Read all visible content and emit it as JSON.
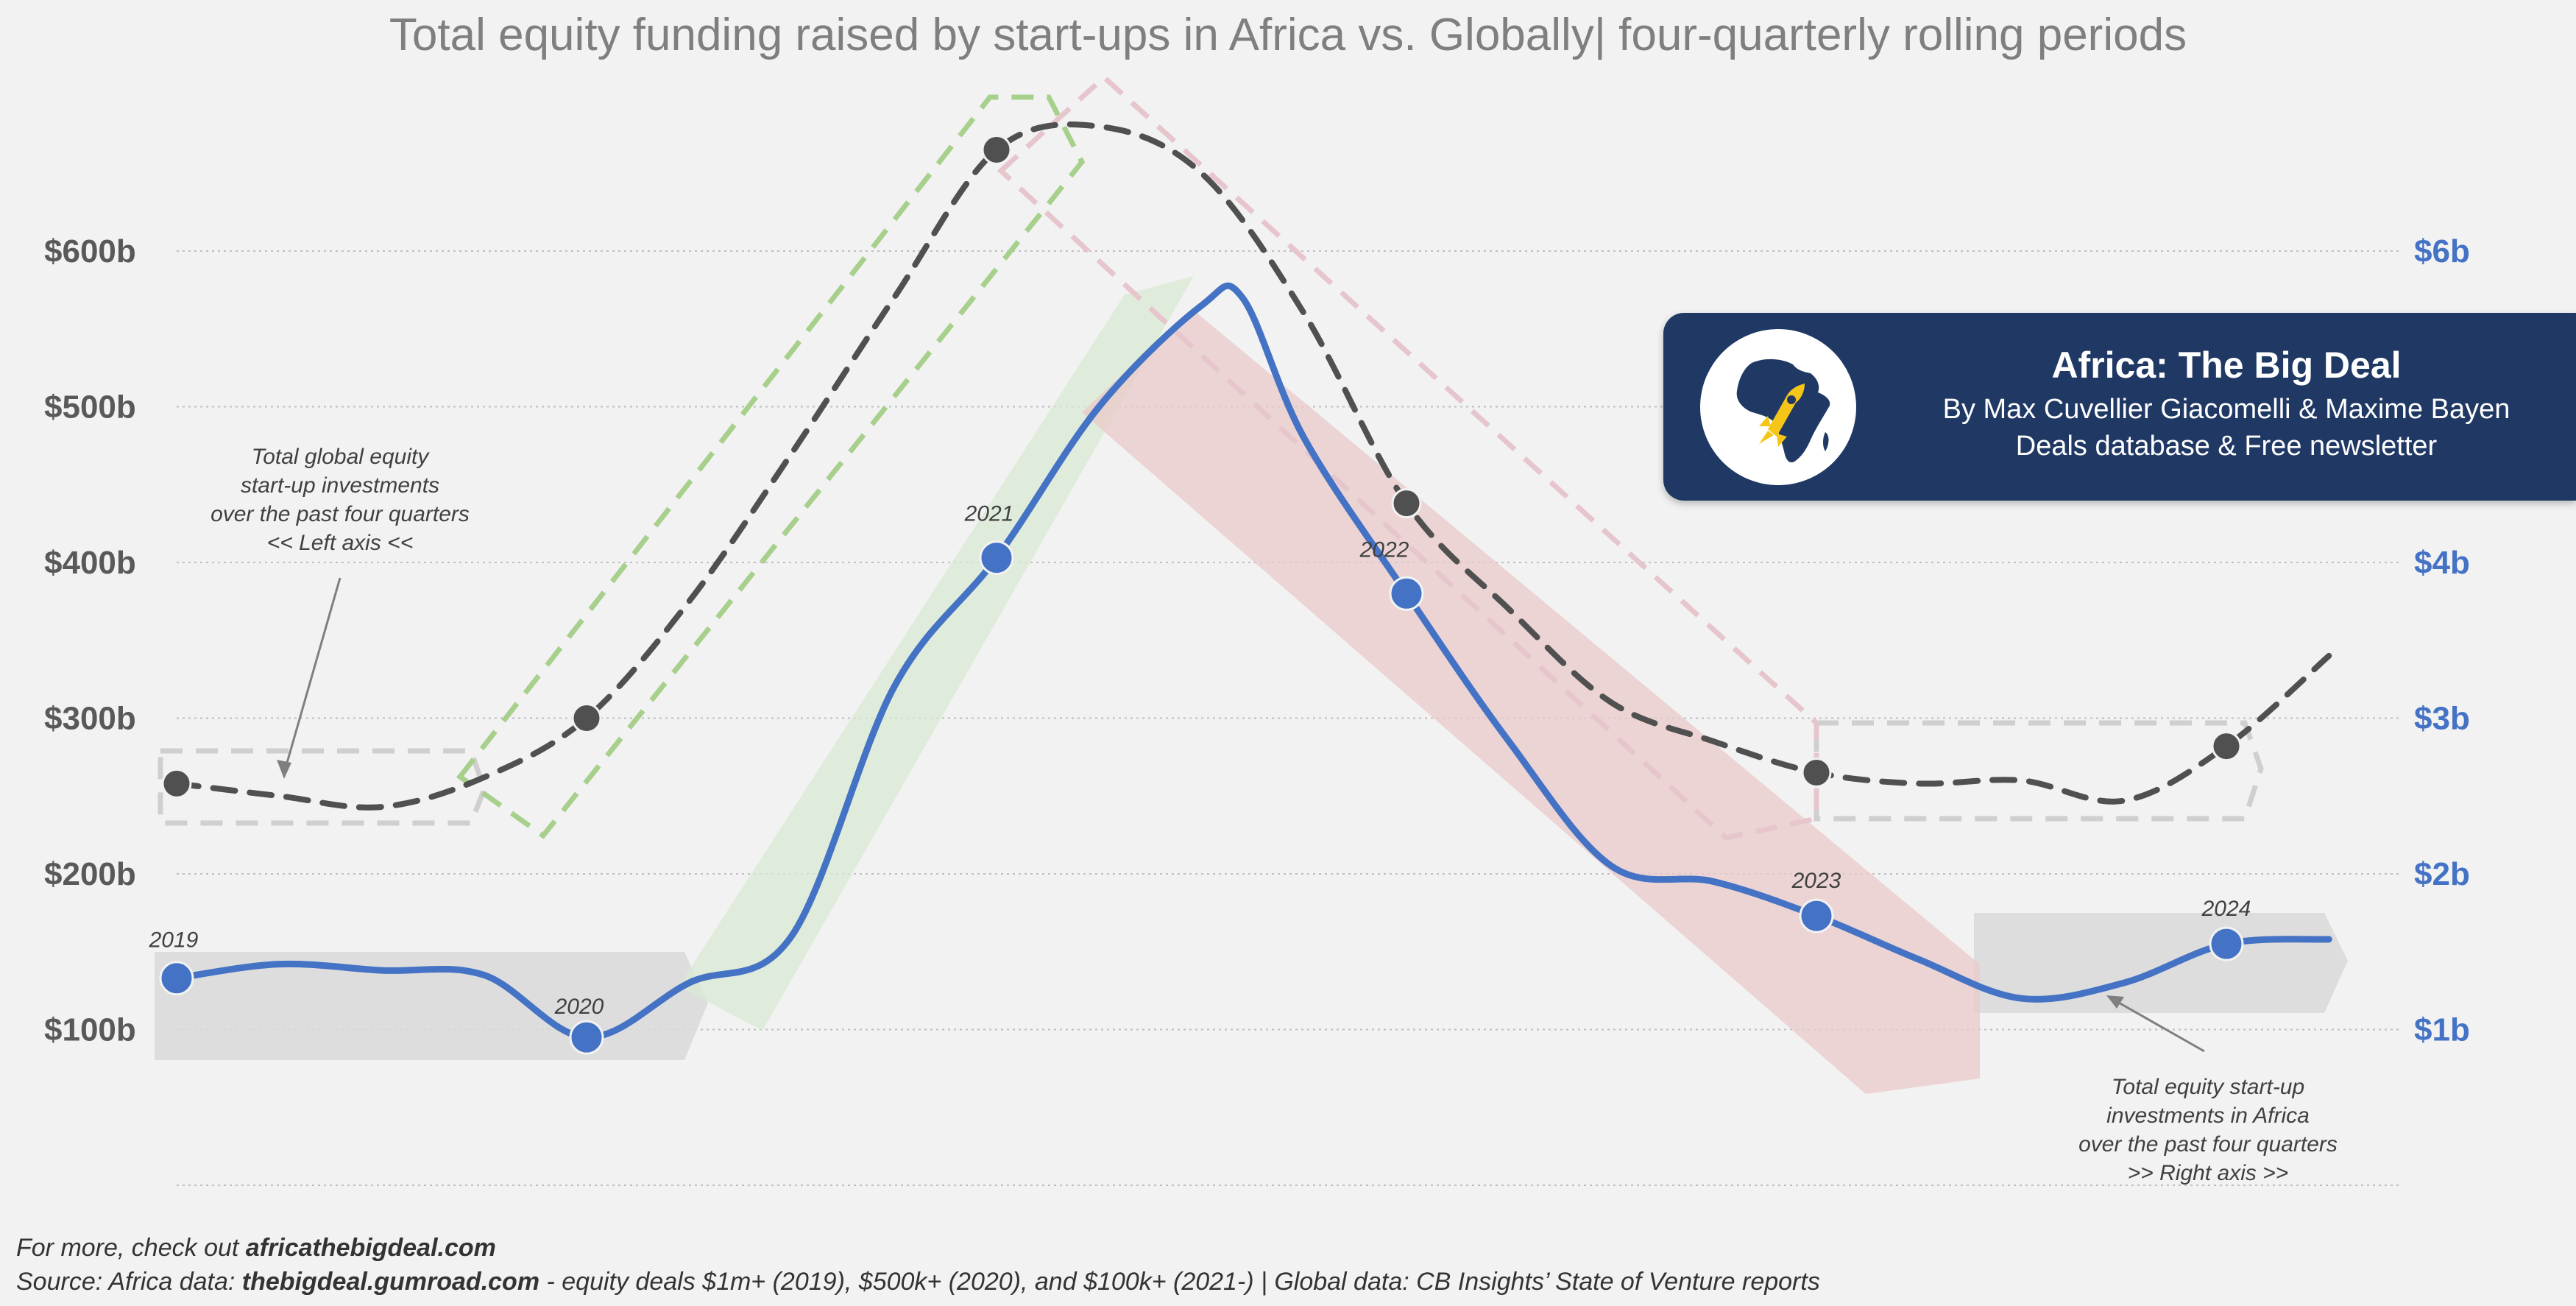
{
  "chart_data": {
    "type": "line",
    "title": "Total equity funding raised by start-ups in Africa vs. Globally| four-quarterly rolling periods",
    "x": [
      "2019",
      "2019.5",
      "2020",
      "2020.5",
      "2021",
      "2021.5",
      "2022",
      "2022.5",
      "2023",
      "2023.5",
      "2024",
      "2024.25"
    ],
    "left_axis": {
      "ticks": [
        100,
        200,
        300,
        400,
        500,
        600
      ],
      "tick_labels": [
        "$100b",
        "$200b",
        "$300b",
        "$400b",
        "$500b",
        "$600b"
      ],
      "ylim": [
        0,
        700
      ]
    },
    "right_axis": {
      "ticks": [
        1,
        2,
        3,
        4,
        6
      ],
      "tick_labels": [
        "$1b",
        "$2b",
        "$3b",
        "$4b",
        "$6b"
      ],
      "ylim": [
        0,
        7
      ]
    },
    "series": [
      {
        "name": "Total global equity start-up investments over the past four quarters",
        "axis": "left",
        "style": "dashed",
        "color": "#505050",
        "x": [
          2019.0,
          2019.25,
          2019.5,
          2019.75,
          2020.0,
          2020.25,
          2020.5,
          2020.75,
          2021.0,
          2021.25,
          2021.5,
          2021.75,
          2022.0,
          2022.25,
          2022.5,
          2022.75,
          2023.0,
          2023.25,
          2023.5,
          2023.75,
          2024.0,
          2024.25
        ],
        "values": [
          258,
          250,
          243,
          262,
          300,
          375,
          470,
          570,
          665,
          680,
          650,
          560,
          438,
          370,
          310,
          285,
          265,
          258,
          260,
          247,
          282,
          340
        ],
        "marker_x": [
          2019,
          2020,
          2021,
          2022,
          2023,
          2024
        ],
        "marker_values": [
          258,
          300,
          665,
          438,
          265,
          282
        ]
      },
      {
        "name": "Total equity start-up investments in Africa over the past four quarters",
        "axis": "right",
        "style": "solid",
        "color": "#4472c4",
        "x": [
          2019.0,
          2019.25,
          2019.5,
          2019.75,
          2020.0,
          2020.25,
          2020.5,
          2020.75,
          2021.0,
          2021.25,
          2021.5,
          2021.6,
          2021.75,
          2022.0,
          2022.25,
          2022.5,
          2022.75,
          2023.0,
          2023.25,
          2023.5,
          2023.75,
          2024.0,
          2024.25
        ],
        "values": [
          1.33,
          1.42,
          1.38,
          1.35,
          0.95,
          1.3,
          1.6,
          3.2,
          4.03,
          5.0,
          5.65,
          5.7,
          4.8,
          3.8,
          2.85,
          2.05,
          1.95,
          1.73,
          1.45,
          1.2,
          1.3,
          1.55,
          1.58
        ],
        "marker_x": [
          2019,
          2020,
          2021,
          2022,
          2023,
          2024
        ],
        "marker_values": [
          1.33,
          0.95,
          4.03,
          3.8,
          1.73,
          1.55
        ]
      }
    ],
    "year_labels": [
      "2019",
      "2020",
      "2021",
      "2022",
      "2023",
      "2024"
    ],
    "annotations": {
      "global": [
        "Total global equity",
        "start-up investments",
        "over the past four quarters",
        "<< Left axis <<"
      ],
      "africa": [
        "Total equity start-up",
        "investments in Africa",
        "over the past four quarters",
        ">> Right axis >>"
      ]
    },
    "colors": {
      "global_band": "#a8d08d",
      "africa_up_band": "#d9ead3",
      "africa_down_band": "#e9c9c9",
      "flat_band": "#d9d9d9",
      "left_ticks": "#595959",
      "right_ticks": "#4472c4"
    },
    "grid": true
  },
  "brand": {
    "title": "Africa: The Big Deal",
    "line1": "By Max Cuvellier Giacomelli & Maxime Bayen",
    "line2": "Deals database & Free newsletter"
  },
  "footer": {
    "line1_prefix": "For more, check out ",
    "line1_link": "africathebigdeal.com",
    "line2_prefix": "Source: Africa data: ",
    "line2_link": "thebigdeal.gumroad.com",
    "line2_rest": " - equity deals $1m+ (2019), $500k+ (2020), and $100k+ (2021-) | Global data: CB Insights’ State of Venture reports"
  }
}
